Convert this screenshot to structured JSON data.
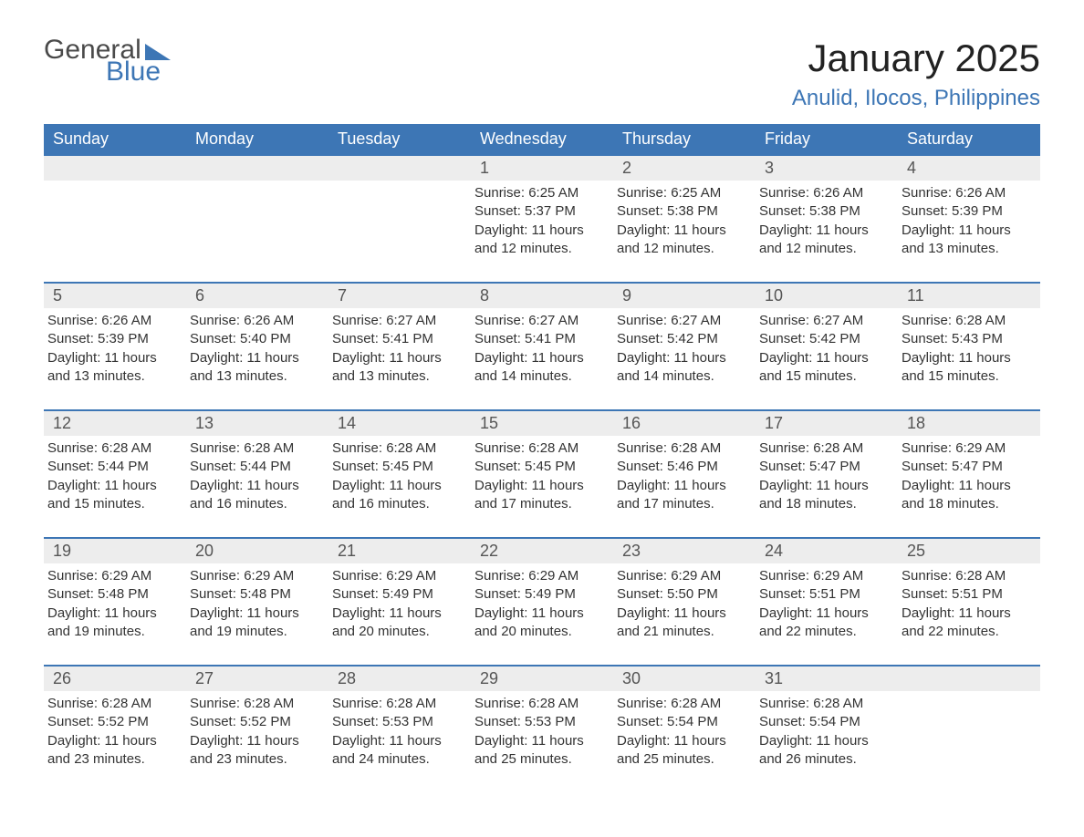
{
  "logo": {
    "text1": "General",
    "text2": "Blue",
    "accent_color": "#3d76b5"
  },
  "title": "January 2025",
  "location": "Anulid, Ilocos, Philippines",
  "style": {
    "header_bg": "#3d76b5",
    "header_text_color": "#ffffff",
    "daynum_bg": "#ededed",
    "daynum_color": "#555555",
    "body_text_color": "#333333",
    "row_divider_color": "#3d76b5",
    "title_fontsize": 42,
    "location_fontsize": 24,
    "weekday_fontsize": 18,
    "daynum_fontsize": 18,
    "body_fontsize": 15
  },
  "weekdays": [
    "Sunday",
    "Monday",
    "Tuesday",
    "Wednesday",
    "Thursday",
    "Friday",
    "Saturday"
  ],
  "weeks": [
    [
      null,
      null,
      null,
      {
        "n": "1",
        "sunrise": "6:25 AM",
        "sunset": "5:37 PM",
        "daylight": "11 hours and 12 minutes."
      },
      {
        "n": "2",
        "sunrise": "6:25 AM",
        "sunset": "5:38 PM",
        "daylight": "11 hours and 12 minutes."
      },
      {
        "n": "3",
        "sunrise": "6:26 AM",
        "sunset": "5:38 PM",
        "daylight": "11 hours and 12 minutes."
      },
      {
        "n": "4",
        "sunrise": "6:26 AM",
        "sunset": "5:39 PM",
        "daylight": "11 hours and 13 minutes."
      }
    ],
    [
      {
        "n": "5",
        "sunrise": "6:26 AM",
        "sunset": "5:39 PM",
        "daylight": "11 hours and 13 minutes."
      },
      {
        "n": "6",
        "sunrise": "6:26 AM",
        "sunset": "5:40 PM",
        "daylight": "11 hours and 13 minutes."
      },
      {
        "n": "7",
        "sunrise": "6:27 AM",
        "sunset": "5:41 PM",
        "daylight": "11 hours and 13 minutes."
      },
      {
        "n": "8",
        "sunrise": "6:27 AM",
        "sunset": "5:41 PM",
        "daylight": "11 hours and 14 minutes."
      },
      {
        "n": "9",
        "sunrise": "6:27 AM",
        "sunset": "5:42 PM",
        "daylight": "11 hours and 14 minutes."
      },
      {
        "n": "10",
        "sunrise": "6:27 AM",
        "sunset": "5:42 PM",
        "daylight": "11 hours and 15 minutes."
      },
      {
        "n": "11",
        "sunrise": "6:28 AM",
        "sunset": "5:43 PM",
        "daylight": "11 hours and 15 minutes."
      }
    ],
    [
      {
        "n": "12",
        "sunrise": "6:28 AM",
        "sunset": "5:44 PM",
        "daylight": "11 hours and 15 minutes."
      },
      {
        "n": "13",
        "sunrise": "6:28 AM",
        "sunset": "5:44 PM",
        "daylight": "11 hours and 16 minutes."
      },
      {
        "n": "14",
        "sunrise": "6:28 AM",
        "sunset": "5:45 PM",
        "daylight": "11 hours and 16 minutes."
      },
      {
        "n": "15",
        "sunrise": "6:28 AM",
        "sunset": "5:45 PM",
        "daylight": "11 hours and 17 minutes."
      },
      {
        "n": "16",
        "sunrise": "6:28 AM",
        "sunset": "5:46 PM",
        "daylight": "11 hours and 17 minutes."
      },
      {
        "n": "17",
        "sunrise": "6:28 AM",
        "sunset": "5:47 PM",
        "daylight": "11 hours and 18 minutes."
      },
      {
        "n": "18",
        "sunrise": "6:29 AM",
        "sunset": "5:47 PM",
        "daylight": "11 hours and 18 minutes."
      }
    ],
    [
      {
        "n": "19",
        "sunrise": "6:29 AM",
        "sunset": "5:48 PM",
        "daylight": "11 hours and 19 minutes."
      },
      {
        "n": "20",
        "sunrise": "6:29 AM",
        "sunset": "5:48 PM",
        "daylight": "11 hours and 19 minutes."
      },
      {
        "n": "21",
        "sunrise": "6:29 AM",
        "sunset": "5:49 PM",
        "daylight": "11 hours and 20 minutes."
      },
      {
        "n": "22",
        "sunrise": "6:29 AM",
        "sunset": "5:49 PM",
        "daylight": "11 hours and 20 minutes."
      },
      {
        "n": "23",
        "sunrise": "6:29 AM",
        "sunset": "5:50 PM",
        "daylight": "11 hours and 21 minutes."
      },
      {
        "n": "24",
        "sunrise": "6:29 AM",
        "sunset": "5:51 PM",
        "daylight": "11 hours and 22 minutes."
      },
      {
        "n": "25",
        "sunrise": "6:28 AM",
        "sunset": "5:51 PM",
        "daylight": "11 hours and 22 minutes."
      }
    ],
    [
      {
        "n": "26",
        "sunrise": "6:28 AM",
        "sunset": "5:52 PM",
        "daylight": "11 hours and 23 minutes."
      },
      {
        "n": "27",
        "sunrise": "6:28 AM",
        "sunset": "5:52 PM",
        "daylight": "11 hours and 23 minutes."
      },
      {
        "n": "28",
        "sunrise": "6:28 AM",
        "sunset": "5:53 PM",
        "daylight": "11 hours and 24 minutes."
      },
      {
        "n": "29",
        "sunrise": "6:28 AM",
        "sunset": "5:53 PM",
        "daylight": "11 hours and 25 minutes."
      },
      {
        "n": "30",
        "sunrise": "6:28 AM",
        "sunset": "5:54 PM",
        "daylight": "11 hours and 25 minutes."
      },
      {
        "n": "31",
        "sunrise": "6:28 AM",
        "sunset": "5:54 PM",
        "daylight": "11 hours and 26 minutes."
      },
      null
    ]
  ]
}
